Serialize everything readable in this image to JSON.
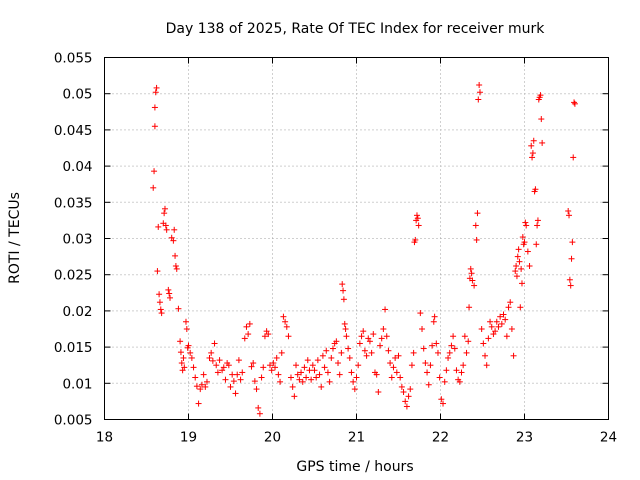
{
  "chart_data": {
    "type": "scatter",
    "title": "Day 138 of 2025, Rate Of TEC Index for receiver murk",
    "xlabel": "GPS time / hours",
    "ylabel": "ROTI / TECUs",
    "xlim": [
      18,
      24
    ],
    "ylim": [
      0.005,
      0.055
    ],
    "xticks": [
      18,
      19,
      20,
      21,
      22,
      23,
      24
    ],
    "xtick_labels": [
      "18",
      "19",
      "20",
      "21",
      "22",
      "23",
      "24"
    ],
    "yticks": [
      0.005,
      0.01,
      0.015,
      0.02,
      0.025,
      0.03,
      0.035,
      0.04,
      0.045,
      0.05,
      0.055
    ],
    "ytick_labels": [
      "0.005",
      "0.01",
      "0.015",
      "0.02",
      "0.025",
      "0.03",
      "0.035",
      "0.04",
      "0.045",
      "0.05",
      "0.055"
    ],
    "grid": true,
    "marker": "+",
    "series": [
      {
        "name": "ROTI",
        "color": "#ff0000",
        "points": [
          [
            18.58,
            0.037
          ],
          [
            18.59,
            0.0393
          ],
          [
            18.6,
            0.0455
          ],
          [
            18.6,
            0.0481
          ],
          [
            18.61,
            0.0502
          ],
          [
            18.62,
            0.0508
          ],
          [
            18.63,
            0.0255
          ],
          [
            18.64,
            0.0316
          ],
          [
            18.65,
            0.0223
          ],
          [
            18.66,
            0.0212
          ],
          [
            18.67,
            0.0202
          ],
          [
            18.68,
            0.0197
          ],
          [
            18.7,
            0.0321
          ],
          [
            18.71,
            0.0335
          ],
          [
            18.72,
            0.0341
          ],
          [
            18.73,
            0.0318
          ],
          [
            18.74,
            0.0312
          ],
          [
            18.76,
            0.0229
          ],
          [
            18.77,
            0.0224
          ],
          [
            18.78,
            0.0218
          ],
          [
            18.8,
            0.0301
          ],
          [
            18.82,
            0.0297
          ],
          [
            18.83,
            0.0312
          ],
          [
            18.84,
            0.0276
          ],
          [
            18.85,
            0.0262
          ],
          [
            18.86,
            0.0258
          ],
          [
            18.88,
            0.0203
          ],
          [
            18.9,
            0.0158
          ],
          [
            18.91,
            0.0143
          ],
          [
            18.92,
            0.0128
          ],
          [
            18.93,
            0.0118
          ],
          [
            18.94,
            0.0135
          ],
          [
            18.95,
            0.0122
          ],
          [
            18.97,
            0.0185
          ],
          [
            18.98,
            0.0175
          ],
          [
            18.99,
            0.0149
          ],
          [
            19.0,
            0.0152
          ],
          [
            19.02,
            0.0142
          ],
          [
            19.04,
            0.0135
          ],
          [
            19.06,
            0.0122
          ],
          [
            19.08,
            0.0108
          ],
          [
            19.1,
            0.0096
          ],
          [
            19.12,
            0.0072
          ],
          [
            19.14,
            0.0092
          ],
          [
            19.16,
            0.0098
          ],
          [
            19.18,
            0.0112
          ],
          [
            19.2,
            0.0095
          ],
          [
            19.22,
            0.0102
          ],
          [
            19.25,
            0.0135
          ],
          [
            19.27,
            0.0142
          ],
          [
            19.29,
            0.0131
          ],
          [
            19.31,
            0.0155
          ],
          [
            19.33,
            0.0125
          ],
          [
            19.35,
            0.0115
          ],
          [
            19.37,
            0.0132
          ],
          [
            19.4,
            0.0118
          ],
          [
            19.42,
            0.0122
          ],
          [
            19.44,
            0.0105
          ],
          [
            19.46,
            0.0128
          ],
          [
            19.48,
            0.0125
          ],
          [
            19.5,
            0.0095
          ],
          [
            19.52,
            0.0112
          ],
          [
            19.54,
            0.0103
          ],
          [
            19.56,
            0.0086
          ],
          [
            19.58,
            0.0112
          ],
          [
            19.6,
            0.0132
          ],
          [
            19.62,
            0.0105
          ],
          [
            19.64,
            0.0115
          ],
          [
            19.67,
            0.0162
          ],
          [
            19.69,
            0.0178
          ],
          [
            19.71,
            0.0168
          ],
          [
            19.73,
            0.0182
          ],
          [
            19.75,
            0.0123
          ],
          [
            19.77,
            0.0128
          ],
          [
            19.79,
            0.0103
          ],
          [
            19.81,
            0.0092
          ],
          [
            19.83,
            0.0066
          ],
          [
            19.85,
            0.0058
          ],
          [
            19.87,
            0.0108
          ],
          [
            19.89,
            0.0122
          ],
          [
            19.91,
            0.0165
          ],
          [
            19.93,
            0.0172
          ],
          [
            19.95,
            0.0168
          ],
          [
            19.97,
            0.0125
          ],
          [
            19.99,
            0.0118
          ],
          [
            20.01,
            0.0128
          ],
          [
            20.03,
            0.0122
          ],
          [
            20.05,
            0.0135
          ],
          [
            20.07,
            0.0112
          ],
          [
            20.09,
            0.0102
          ],
          [
            20.11,
            0.0142
          ],
          [
            20.13,
            0.0192
          ],
          [
            20.15,
            0.0185
          ],
          [
            20.17,
            0.0178
          ],
          [
            20.19,
            0.0165
          ],
          [
            20.22,
            0.0108
          ],
          [
            20.24,
            0.0095
          ],
          [
            20.26,
            0.0082
          ],
          [
            20.28,
            0.0125
          ],
          [
            20.3,
            0.0112
          ],
          [
            20.32,
            0.0105
          ],
          [
            20.34,
            0.0115
          ],
          [
            20.36,
            0.0102
          ],
          [
            20.38,
            0.0122
          ],
          [
            20.4,
            0.0108
          ],
          [
            20.42,
            0.0132
          ],
          [
            20.44,
            0.0118
          ],
          [
            20.46,
            0.0105
          ],
          [
            20.48,
            0.0125
          ],
          [
            20.5,
            0.0118
          ],
          [
            20.52,
            0.0108
          ],
          [
            20.54,
            0.0132
          ],
          [
            20.56,
            0.0112
          ],
          [
            20.58,
            0.0095
          ],
          [
            20.6,
            0.0138
          ],
          [
            20.62,
            0.0122
          ],
          [
            20.64,
            0.0145
          ],
          [
            20.66,
            0.0115
          ],
          [
            20.68,
            0.0102
          ],
          [
            20.7,
            0.0135
          ],
          [
            20.72,
            0.0148
          ],
          [
            20.74,
            0.0155
          ],
          [
            20.76,
            0.0158
          ],
          [
            20.78,
            0.0128
          ],
          [
            20.8,
            0.0112
          ],
          [
            20.82,
            0.0142
          ],
          [
            20.83,
            0.0237
          ],
          [
            20.84,
            0.0228
          ],
          [
            20.85,
            0.0216
          ],
          [
            20.86,
            0.0182
          ],
          [
            20.87,
            0.0175
          ],
          [
            20.88,
            0.0165
          ],
          [
            20.9,
            0.0148
          ],
          [
            20.92,
            0.0135
          ],
          [
            20.94,
            0.0115
          ],
          [
            20.96,
            0.0102
          ],
          [
            20.98,
            0.0092
          ],
          [
            21.0,
            0.0108
          ],
          [
            21.02,
            0.0125
          ],
          [
            21.04,
            0.0155
          ],
          [
            21.06,
            0.0165
          ],
          [
            21.08,
            0.0172
          ],
          [
            21.1,
            0.0145
          ],
          [
            21.12,
            0.0138
          ],
          [
            21.14,
            0.0162
          ],
          [
            21.16,
            0.0158
          ],
          [
            21.18,
            0.0142
          ],
          [
            21.2,
            0.0168
          ],
          [
            21.22,
            0.0115
          ],
          [
            21.24,
            0.0112
          ],
          [
            21.26,
            0.0088
          ],
          [
            21.28,
            0.0152
          ],
          [
            21.3,
            0.0162
          ],
          [
            21.32,
            0.0175
          ],
          [
            21.34,
            0.0202
          ],
          [
            21.36,
            0.0165
          ],
          [
            21.38,
            0.0145
          ],
          [
            21.4,
            0.0128
          ],
          [
            21.42,
            0.0108
          ],
          [
            21.44,
            0.0122
          ],
          [
            21.46,
            0.0135
          ],
          [
            21.48,
            0.0115
          ],
          [
            21.5,
            0.0138
          ],
          [
            21.52,
            0.0108
          ],
          [
            21.54,
            0.0095
          ],
          [
            21.56,
            0.0088
          ],
          [
            21.58,
            0.0075
          ],
          [
            21.6,
            0.0068
          ],
          [
            21.62,
            0.0082
          ],
          [
            21.64,
            0.0092
          ],
          [
            21.66,
            0.0125
          ],
          [
            21.68,
            0.0142
          ],
          [
            21.69,
            0.0295
          ],
          [
            21.7,
            0.0298
          ],
          [
            21.71,
            0.0325
          ],
          [
            21.72,
            0.0332
          ],
          [
            21.73,
            0.0328
          ],
          [
            21.74,
            0.0318
          ],
          [
            21.76,
            0.0197
          ],
          [
            21.78,
            0.0175
          ],
          [
            21.8,
            0.0148
          ],
          [
            21.82,
            0.0128
          ],
          [
            21.84,
            0.0115
          ],
          [
            21.86,
            0.0098
          ],
          [
            21.88,
            0.0125
          ],
          [
            21.9,
            0.0152
          ],
          [
            21.92,
            0.0185
          ],
          [
            21.93,
            0.0192
          ],
          [
            21.95,
            0.0155
          ],
          [
            21.97,
            0.0142
          ],
          [
            21.99,
            0.0108
          ],
          [
            22.01,
            0.0078
          ],
          [
            22.03,
            0.0072
          ],
          [
            22.05,
            0.0102
          ],
          [
            22.07,
            0.0118
          ],
          [
            22.09,
            0.0135
          ],
          [
            22.11,
            0.0142
          ],
          [
            22.13,
            0.0152
          ],
          [
            22.15,
            0.0165
          ],
          [
            22.17,
            0.0148
          ],
          [
            22.19,
            0.0118
          ],
          [
            22.21,
            0.0105
          ],
          [
            22.23,
            0.0102
          ],
          [
            22.25,
            0.0115
          ],
          [
            22.27,
            0.0125
          ],
          [
            22.29,
            0.0165
          ],
          [
            22.31,
            0.0142
          ],
          [
            22.33,
            0.0158
          ],
          [
            22.34,
            0.0205
          ],
          [
            22.35,
            0.0245
          ],
          [
            22.36,
            0.0258
          ],
          [
            22.37,
            0.0252
          ],
          [
            22.38,
            0.0242
          ],
          [
            22.4,
            0.0235
          ],
          [
            22.42,
            0.0318
          ],
          [
            22.43,
            0.0298
          ],
          [
            22.44,
            0.0335
          ],
          [
            22.45,
            0.0492
          ],
          [
            22.46,
            0.0512
          ],
          [
            22.47,
            0.0502
          ],
          [
            22.49,
            0.0175
          ],
          [
            22.51,
            0.0155
          ],
          [
            22.53,
            0.0138
          ],
          [
            22.55,
            0.0125
          ],
          [
            22.57,
            0.0162
          ],
          [
            22.59,
            0.0185
          ],
          [
            22.61,
            0.0178
          ],
          [
            22.63,
            0.0168
          ],
          [
            22.65,
            0.0172
          ],
          [
            22.67,
            0.0185
          ],
          [
            22.69,
            0.0178
          ],
          [
            22.71,
            0.0192
          ],
          [
            22.73,
            0.0182
          ],
          [
            22.75,
            0.0195
          ],
          [
            22.77,
            0.0188
          ],
          [
            22.79,
            0.0165
          ],
          [
            22.81,
            0.0205
          ],
          [
            22.83,
            0.0212
          ],
          [
            22.85,
            0.0175
          ],
          [
            22.87,
            0.0138
          ],
          [
            22.89,
            0.0255
          ],
          [
            22.9,
            0.0262
          ],
          [
            22.91,
            0.0248
          ],
          [
            22.92,
            0.0275
          ],
          [
            22.93,
            0.0285
          ],
          [
            22.94,
            0.0268
          ],
          [
            22.95,
            0.0205
          ],
          [
            22.96,
            0.0258
          ],
          [
            22.97,
            0.0238
          ],
          [
            22.98,
            0.0302
          ],
          [
            22.99,
            0.0292
          ],
          [
            23.0,
            0.0295
          ],
          [
            23.01,
            0.0322
          ],
          [
            23.02,
            0.0318
          ],
          [
            23.04,
            0.0282
          ],
          [
            23.06,
            0.0262
          ],
          [
            23.08,
            0.0428
          ],
          [
            23.09,
            0.0412
          ],
          [
            23.1,
            0.0418
          ],
          [
            23.11,
            0.0435
          ],
          [
            23.12,
            0.0365
          ],
          [
            23.13,
            0.0368
          ],
          [
            23.14,
            0.0292
          ],
          [
            23.15,
            0.0318
          ],
          [
            23.16,
            0.0325
          ],
          [
            23.17,
            0.0492
          ],
          [
            23.18,
            0.0495
          ],
          [
            23.19,
            0.0498
          ],
          [
            23.2,
            0.0465
          ],
          [
            23.21,
            0.0432
          ],
          [
            23.52,
            0.0338
          ],
          [
            23.53,
            0.0332
          ],
          [
            23.54,
            0.0243
          ],
          [
            23.55,
            0.0235
          ],
          [
            23.56,
            0.0272
          ],
          [
            23.57,
            0.0295
          ],
          [
            23.58,
            0.0412
          ],
          [
            23.59,
            0.0488
          ],
          [
            23.6,
            0.0486
          ]
        ]
      }
    ]
  }
}
